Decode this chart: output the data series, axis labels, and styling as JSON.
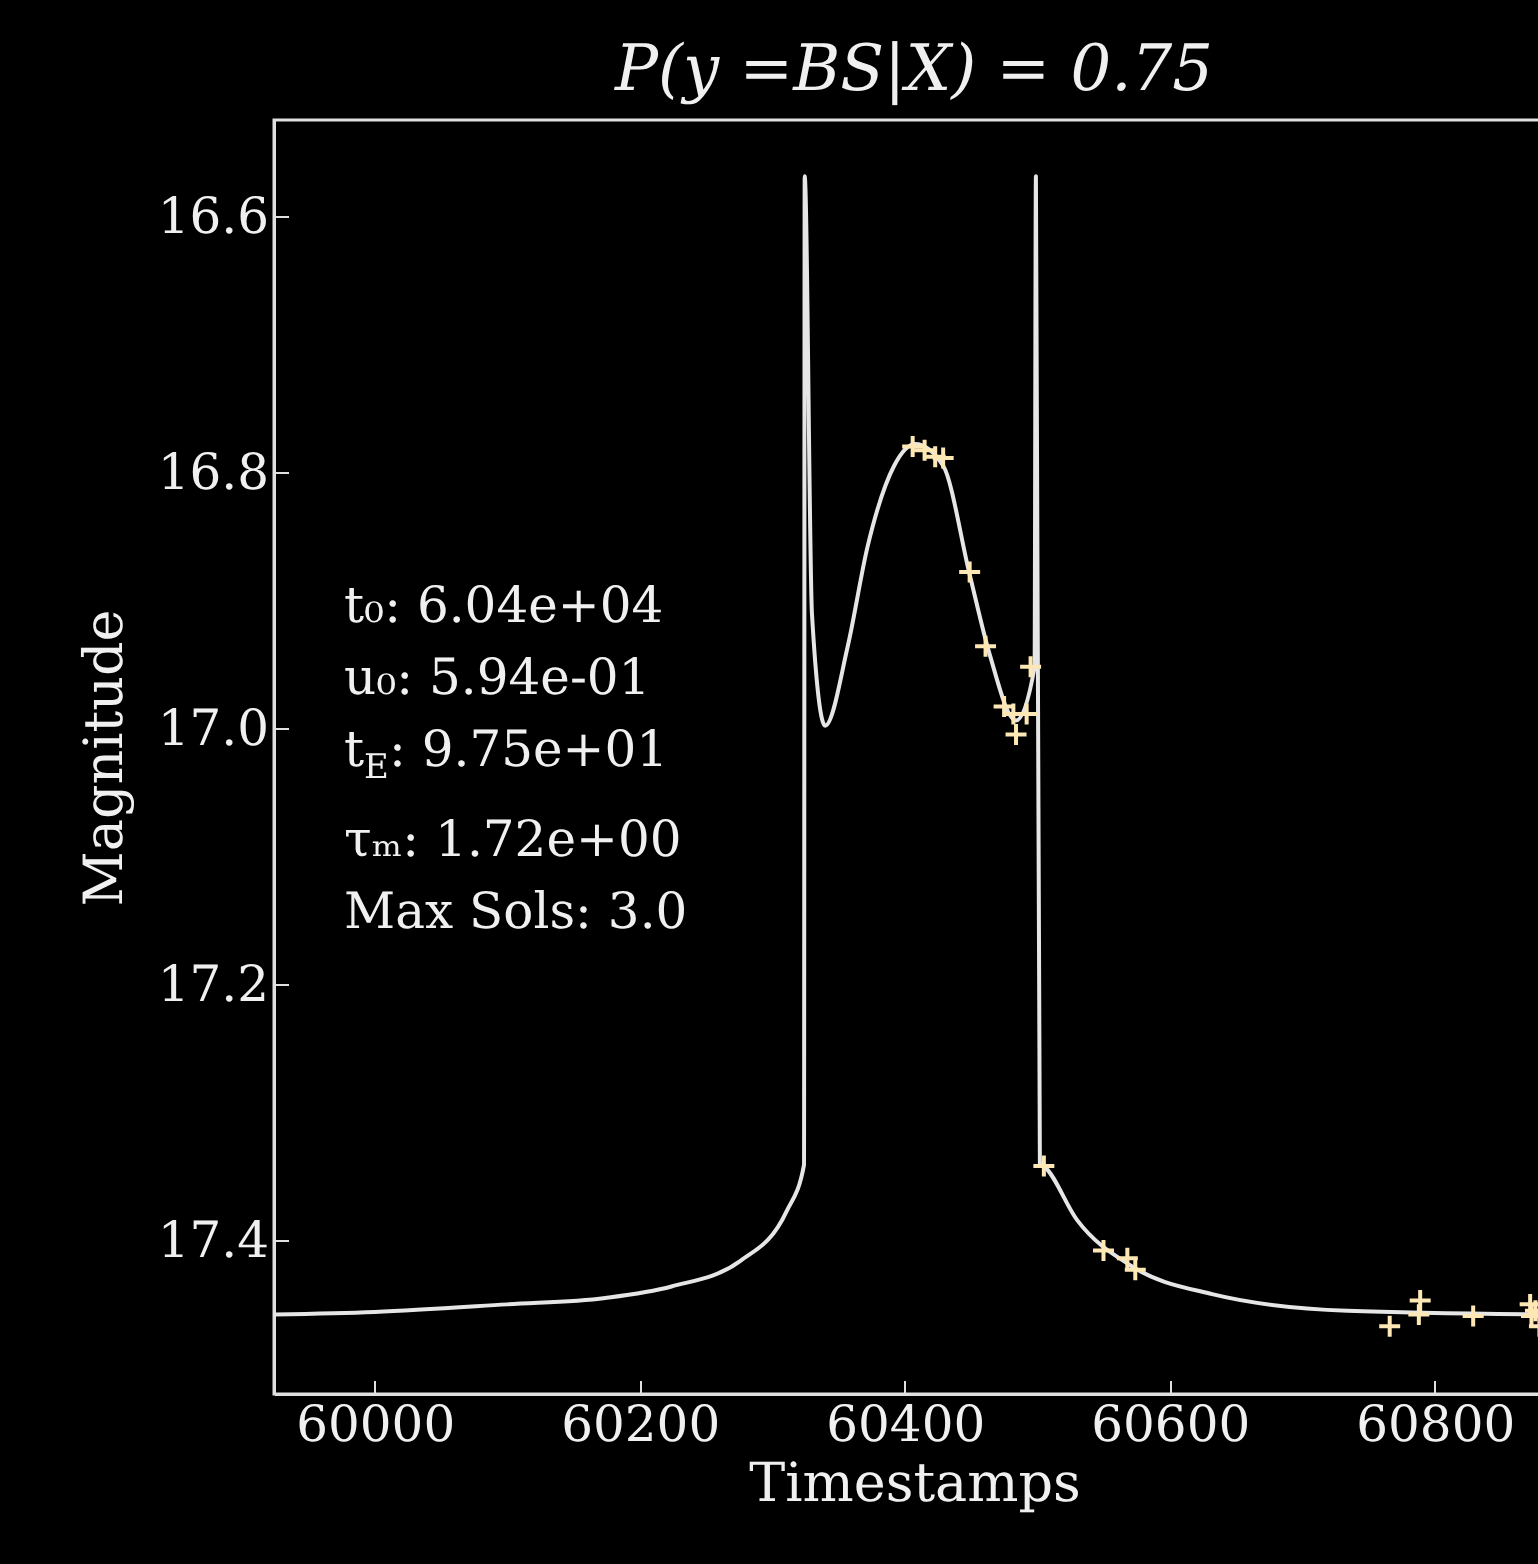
{
  "chart_data": {
    "title": "P(y =BS|X) = 0.75",
    "xlabel": "Timestamps",
    "ylabel": "Magnitude",
    "xlim": [
      59924,
      60890
    ],
    "ylim": [
      17.52,
      16.525
    ],
    "xticks": [
      60000,
      60200,
      60400,
      60600,
      60800
    ],
    "yticks": [
      16.6,
      16.8,
      {
        "value": 17,
        "label": "17.0"
      },
      17.2,
      17.4
    ],
    "type": "line",
    "grid": false,
    "annotations": [
      "t₀: 6.04e+04",
      "u₀: 5.94e-01",
      "t$_{E}$: 9.75e+01",
      "τₘ: 1.72e+00",
      "Max Sols: 3.0"
    ],
    "series": [
      {
        "color": "#e6e6e6",
        "line_style": "solid",
        "marker": "none",
        "x": [
          59924,
          60000,
          60100,
          60174,
          60224,
          60276,
          60311,
          60324,
          60324.5,
          60330,
          60340,
          60357,
          60372,
          60392,
          60408,
          60429,
          60449,
          60464,
          60484,
          60498,
          60499,
          60502,
          60505,
          60530,
          60571,
          60632,
          60734,
          60890
        ],
        "values": [
          17.458,
          17.456,
          17.45,
          17.445,
          17.436,
          17.416,
          17.377,
          17.341,
          16.569,
          16.911,
          16.998,
          16.936,
          16.858,
          16.795,
          16.778,
          16.795,
          16.88,
          16.942,
          16.994,
          16.952,
          16.569,
          17.34,
          17.342,
          17.384,
          17.42,
          17.442,
          17.455,
          17.458
        ]
      },
      {
        "type": "scatter",
        "color": "#fde8b5",
        "marker": "cross",
        "x": [
          60406,
          60415,
          60423,
          60429,
          60449,
          60461,
          60475,
          60482,
          60484,
          60492,
          60495,
          60505,
          60550,
          60568,
          60574,
          60766,
          60788,
          60789,
          60829,
          60872,
          60873,
          60876,
          60879
        ],
        "values": [
          16.78,
          16.783,
          16.788,
          16.789,
          16.878,
          16.936,
          16.983,
          16.989,
          17.005,
          16.989,
          16.952,
          17.342,
          17.408,
          17.414,
          17.423,
          17.467,
          17.458,
          17.447,
          17.459,
          17.45,
          17.459,
          17.455,
          17.467
        ]
      }
    ]
  }
}
